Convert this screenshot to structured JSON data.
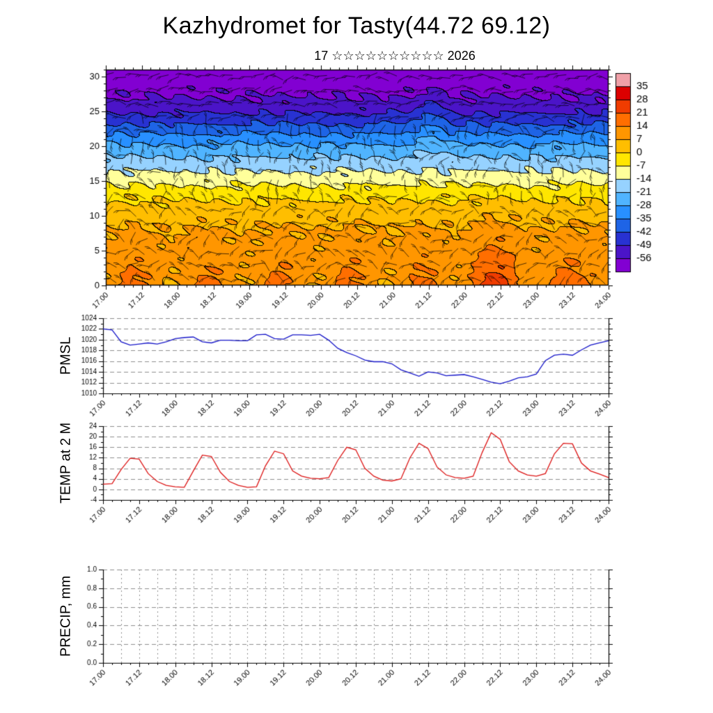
{
  "title": "Kazhydromet for Tasty(44.72 69.12)",
  "subtitle": "17 ☆☆☆☆☆☆☆☆☆☆ 2026",
  "time_axis": {
    "tick_labels": [
      "17.00",
      "17.12",
      "18.00",
      "18.12",
      "19.00",
      "19.12",
      "20.00",
      "20.12",
      "21.00",
      "21.12",
      "22.00",
      "22.12",
      "23.00",
      "23.12",
      "24.00"
    ]
  },
  "chart_data": [
    {
      "name": "temperature_height_section",
      "type": "heatmap",
      "title": "",
      "ylim": [
        0,
        30
      ],
      "ytick_labels": [
        "0",
        "5",
        "10",
        "15",
        "20",
        "25",
        "30"
      ],
      "xtick_labels": [
        "17.00",
        "17.12",
        "18.00",
        "18.12",
        "19.00",
        "19.12",
        "20.00",
        "20.12",
        "21.00",
        "21.12",
        "22.00",
        "22.12",
        "23.00",
        "23.12",
        "24.00"
      ],
      "overlay": "wind-barbs",
      "colorbar": {
        "boundary_labels": [
          "35",
          "28",
          "21",
          "14",
          "7",
          "0",
          "-7",
          "-14",
          "-21",
          "-28",
          "-35",
          "-42",
          "-49",
          "-56"
        ],
        "colors_top_to_bottom": [
          "#f0a0a8",
          "#dc0000",
          "#f03c00",
          "#ff6e00",
          "#ff9600",
          "#ffbe00",
          "#ffe600",
          "#ffff9b",
          "#96d2ff",
          "#50b4ff",
          "#2890ff",
          "#1e64e6",
          "#2832d2",
          "#4b14c8",
          "#8200d2"
        ]
      },
      "profile_estimate": {
        "heights": [
          0,
          5,
          10,
          15,
          20,
          25,
          30
        ],
        "temps": [
          12,
          10,
          5,
          -9,
          -28,
          -50,
          -61
        ]
      }
    },
    {
      "name": "pmsl",
      "type": "line",
      "label": "PMSL",
      "color": "#1414c8",
      "ylim": [
        1010,
        1024
      ],
      "ytick_labels": [
        "1010",
        "1012",
        "1014",
        "1016",
        "1018",
        "1020",
        "1022",
        "1024"
      ],
      "x_step_days": 0.125,
      "values": [
        1022.0,
        1021.8,
        1019.6,
        1019.0,
        1019.2,
        1019.4,
        1019.2,
        1019.6,
        1020.2,
        1020.4,
        1020.5,
        1019.6,
        1019.4,
        1019.9,
        1019.9,
        1019.8,
        1019.8,
        1020.9,
        1021.0,
        1020.2,
        1020.1,
        1020.9,
        1020.9,
        1020.8,
        1021.0,
        1019.9,
        1018.4,
        1017.6,
        1017.0,
        1016.2,
        1015.9,
        1015.9,
        1015.5,
        1014.4,
        1013.8,
        1013.2,
        1014.0,
        1013.8,
        1013.3,
        1013.4,
        1013.5,
        1013.1,
        1012.6,
        1012.1,
        1011.8,
        1012.3,
        1012.9,
        1013.1,
        1013.6,
        1016.1,
        1017.1,
        1017.3,
        1017.1,
        1018.1,
        1019.0,
        1019.4,
        1019.8
      ]
    },
    {
      "name": "temp_2m",
      "type": "line",
      "label": "TEMP at 2 M",
      "color": "#dc1414",
      "ylim": [
        -4,
        24
      ],
      "ytick_labels": [
        "-4",
        "0",
        "4",
        "8",
        "12",
        "16",
        "20",
        "24"
      ],
      "x_step_days": 0.125,
      "values": [
        2.0,
        2.2,
        7.5,
        11.8,
        11.5,
        6.0,
        3.0,
        1.5,
        1.0,
        0.8,
        7.0,
        13.0,
        12.5,
        6.5,
        3.0,
        1.5,
        0.8,
        1.0,
        9.0,
        14.5,
        13.5,
        7.0,
        5.0,
        4.2,
        4.0,
        4.5,
        11.0,
        16.0,
        15.0,
        8.0,
        5.0,
        3.5,
        3.2,
        4.0,
        12.0,
        17.5,
        15.5,
        8.5,
        5.5,
        4.5,
        4.2,
        5.0,
        14.0,
        21.5,
        19.0,
        10.5,
        7.0,
        5.5,
        5.0,
        6.0,
        13.5,
        17.5,
        17.3,
        10.0,
        7.0,
        5.8,
        4.5
      ]
    },
    {
      "name": "precip",
      "type": "line",
      "label": "PRECIP, mm",
      "color": "#008080",
      "ylim": [
        0,
        1
      ],
      "ytick_labels": [
        "0.0",
        "0.2",
        "0.4",
        "0.6",
        "0.8",
        "1.0"
      ],
      "x_step_days": 0.125,
      "values": [
        0,
        0,
        0,
        0,
        0,
        0,
        0,
        0,
        0,
        0,
        0,
        0,
        0,
        0,
        0,
        0,
        0,
        0,
        0,
        0,
        0,
        0,
        0,
        0,
        0,
        0,
        0,
        0,
        0,
        0,
        0,
        0,
        0,
        0,
        0,
        0,
        0,
        0,
        0,
        0,
        0,
        0,
        0,
        0,
        0,
        0,
        0,
        0,
        0,
        0,
        0,
        0,
        0,
        0,
        0,
        0,
        0
      ]
    }
  ]
}
